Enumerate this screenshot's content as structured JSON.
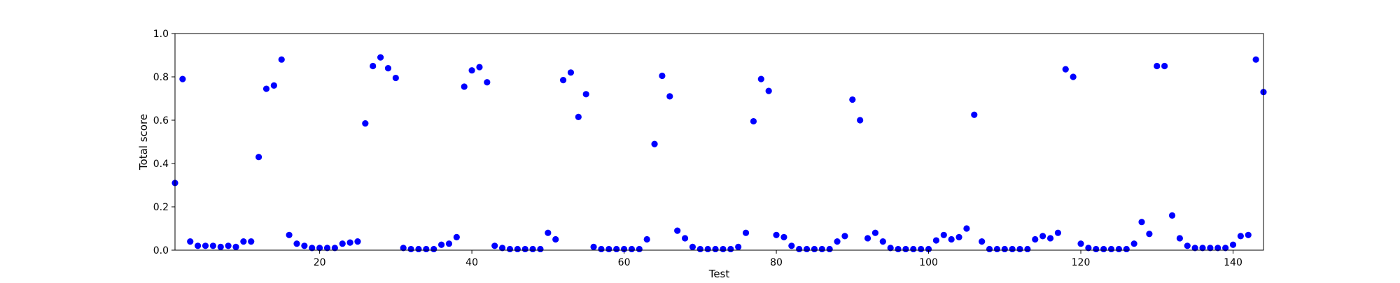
{
  "chart_data": {
    "type": "scatter",
    "xlabel": "Test",
    "ylabel": "Total score",
    "xlim": [
      1,
      144
    ],
    "ylim": [
      0,
      1.0
    ],
    "xticks": [
      20,
      40,
      60,
      80,
      100,
      120,
      140
    ],
    "xtick_labels": [
      "20",
      "40",
      "60",
      "80",
      "100",
      "120",
      "140"
    ],
    "yticks": [
      0,
      0.2,
      0.4,
      0.6,
      0.8,
      1.0
    ],
    "ytick_labels": [
      "0.0",
      "0.2",
      "0.4",
      "0.6",
      "0.8",
      "1.0"
    ],
    "grid": false,
    "marker_color": "#0000ff",
    "series": [
      {
        "x": [
          1,
          2,
          3,
          4,
          5,
          6,
          7,
          8,
          9,
          10,
          11,
          12,
          13,
          14,
          15,
          16,
          17,
          18,
          19,
          20,
          21,
          22,
          23,
          24,
          25,
          26,
          27,
          28,
          29,
          30,
          31,
          32,
          33,
          34,
          35,
          36,
          37,
          38,
          39,
          40,
          41,
          42,
          43,
          44,
          45,
          46,
          47,
          48,
          49,
          50,
          51,
          52,
          53,
          54,
          55,
          56,
          57,
          58,
          59,
          60,
          61,
          62,
          63,
          64,
          65,
          66,
          67,
          68,
          69,
          70,
          71,
          72,
          73,
          74,
          75,
          76,
          77,
          78,
          79,
          80,
          81,
          82,
          83,
          84,
          85,
          86,
          87,
          88,
          89,
          90,
          91,
          92,
          93,
          94,
          95,
          96,
          97,
          98,
          99,
          100,
          101,
          102,
          103,
          104,
          105,
          106,
          107,
          108,
          109,
          110,
          111,
          112,
          113,
          114,
          115,
          116,
          117,
          118,
          119,
          120,
          121,
          122,
          123,
          124,
          125,
          126,
          127,
          128,
          129,
          130,
          131,
          132,
          133,
          134,
          135,
          136,
          137,
          138,
          139,
          140,
          141,
          142,
          143,
          144
        ],
        "y": [
          0.31,
          0.79,
          0.04,
          0.02,
          0.02,
          0.02,
          0.015,
          0.02,
          0.015,
          0.04,
          0.04,
          0.43,
          0.745,
          0.76,
          0.88,
          0.07,
          0.03,
          0.02,
          0.01,
          0.01,
          0.01,
          0.01,
          0.03,
          0.035,
          0.04,
          0.585,
          0.85,
          0.89,
          0.84,
          0.795,
          0.01,
          0.005,
          0.005,
          0.005,
          0.005,
          0.025,
          0.03,
          0.06,
          0.755,
          0.83,
          0.845,
          0.775,
          0.02,
          0.01,
          0.005,
          0.005,
          0.005,
          0.005,
          0.005,
          0.08,
          0.05,
          0.785,
          0.82,
          0.615,
          0.72,
          0.015,
          0.005,
          0.005,
          0.005,
          0.005,
          0.005,
          0.005,
          0.05,
          0.49,
          0.805,
          0.71,
          0.09,
          0.055,
          0.015,
          0.005,
          0.005,
          0.005,
          0.005,
          0.005,
          0.015,
          0.08,
          0.595,
          0.79,
          0.735,
          0.07,
          0.06,
          0.02,
          0.005,
          0.005,
          0.005,
          0.005,
          0.005,
          0.04,
          0.065,
          0.695,
          0.6,
          0.055,
          0.08,
          0.04,
          0.01,
          0.005,
          0.005,
          0.005,
          0.005,
          0.005,
          0.045,
          0.07,
          0.05,
          0.06,
          0.1,
          0.625,
          0.04,
          0.005,
          0.005,
          0.005,
          0.005,
          0.005,
          0.005,
          0.05,
          0.065,
          0.055,
          0.08,
          0.835,
          0.8,
          0.03,
          0.01,
          0.005,
          0.005,
          0.005,
          0.005,
          0.005,
          0.03,
          0.13,
          0.075,
          0.85,
          0.85,
          0.16,
          0.055,
          0.02,
          0.01,
          0.01,
          0.01,
          0.01,
          0.01,
          0.025,
          0.065,
          0.07,
          0.88,
          0.73
        ]
      }
    ]
  }
}
